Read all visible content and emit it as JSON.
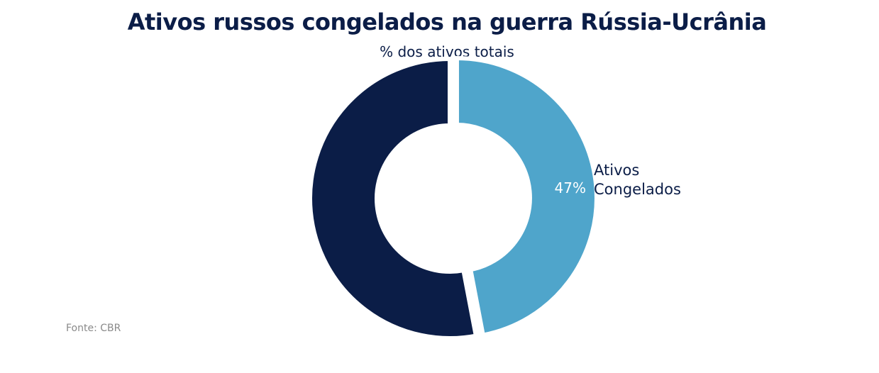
{
  "header": {
    "title": "Ativos russos congelados na guerra Rússia-Ucrânia",
    "subtitle": "% dos ativos totais"
  },
  "footer": {
    "source": "Fonte: CBR"
  },
  "chart_data": {
    "type": "pie",
    "variant": "donut",
    "title": "Ativos russos congelados na guerra Rússia-Ucrânia",
    "subtitle": "% dos ativos totais",
    "slices": [
      {
        "name": "Ativos Congelados",
        "label_lines": [
          "Ativos",
          "Congelados"
        ],
        "value": 47,
        "value_label": "47%",
        "color": "#4fa5cb",
        "exploded": true
      },
      {
        "name": "",
        "value": 53,
        "value_label": "",
        "color": "#0b1d47",
        "exploded": false
      }
    ],
    "start_angle": "12 o'clock, clockwise"
  }
}
